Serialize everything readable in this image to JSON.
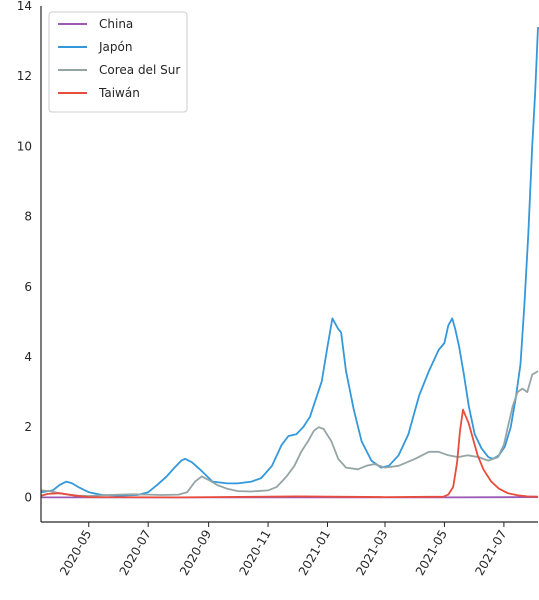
{
  "chart_data": {
    "type": "line",
    "x_type": "date",
    "xlim": [
      "2020-03-13",
      "2021-08-05"
    ],
    "ylim": [
      -0.7,
      14
    ],
    "xticks": [
      "2020-05",
      "2020-07",
      "2020-09",
      "2020-11",
      "2021-01",
      "2021-03",
      "2021-05",
      "2021-07"
    ],
    "yticks": [
      0,
      2,
      4,
      6,
      8,
      10,
      12,
      14
    ],
    "grid": false,
    "legend": "top-left",
    "series": [
      {
        "name": "China",
        "color": "#9b59b6",
        "x": [
          "2020-03-13",
          "2020-07-01",
          "2021-01-01",
          "2021-05-01",
          "2021-08-05"
        ],
        "y": [
          0.0,
          0.0,
          0.0,
          0.0,
          0.01
        ]
      },
      {
        "name": "Japón",
        "color": "#3498db",
        "x": [
          "2020-03-13",
          "2020-03-25",
          "2020-04-01",
          "2020-04-08",
          "2020-04-14",
          "2020-04-20",
          "2020-05-01",
          "2020-05-15",
          "2020-06-01",
          "2020-06-20",
          "2020-07-01",
          "2020-07-10",
          "2020-07-20",
          "2020-07-28",
          "2020-08-04",
          "2020-08-08",
          "2020-08-15",
          "2020-08-25",
          "2020-09-05",
          "2020-09-20",
          "2020-10-01",
          "2020-10-15",
          "2020-10-25",
          "2020-11-05",
          "2020-11-15",
          "2020-11-22",
          "2020-11-30",
          "2020-12-07",
          "2020-12-14",
          "2020-12-20",
          "2020-12-26",
          "2021-01-01",
          "2021-01-06",
          "2021-01-09",
          "2021-01-12",
          "2021-01-15",
          "2021-01-20",
          "2021-01-28",
          "2021-02-05",
          "2021-02-15",
          "2021-02-25",
          "2021-03-05",
          "2021-03-15",
          "2021-03-25",
          "2021-04-05",
          "2021-04-15",
          "2021-04-25",
          "2021-05-01",
          "2021-05-05",
          "2021-05-09",
          "2021-05-12",
          "2021-05-16",
          "2021-05-21",
          "2021-05-26",
          "2021-06-01",
          "2021-06-08",
          "2021-06-15",
          "2021-06-20",
          "2021-06-26",
          "2021-07-02",
          "2021-07-08",
          "2021-07-13",
          "2021-07-18",
          "2021-07-22",
          "2021-07-26",
          "2021-07-30",
          "2021-08-02",
          "2021-08-05"
        ],
        "y": [
          0.15,
          0.2,
          0.35,
          0.45,
          0.4,
          0.3,
          0.15,
          0.07,
          0.05,
          0.07,
          0.15,
          0.35,
          0.6,
          0.85,
          1.05,
          1.1,
          1.0,
          0.75,
          0.45,
          0.4,
          0.4,
          0.45,
          0.55,
          0.9,
          1.5,
          1.75,
          1.8,
          2.0,
          2.3,
          2.8,
          3.3,
          4.3,
          5.1,
          4.95,
          4.8,
          4.7,
          3.6,
          2.5,
          1.6,
          1.05,
          0.85,
          0.9,
          1.2,
          1.8,
          2.9,
          3.6,
          4.2,
          4.4,
          4.9,
          5.1,
          4.8,
          4.3,
          3.5,
          2.6,
          1.8,
          1.4,
          1.15,
          1.1,
          1.2,
          1.45,
          2.0,
          2.8,
          3.8,
          5.5,
          7.5,
          10.0,
          11.5,
          13.4
        ]
      },
      {
        "name": "Corea del Sur",
        "color": "#95a5a6",
        "x": [
          "2020-03-13",
          "2020-03-22",
          "2020-04-01",
          "2020-04-10",
          "2020-04-20",
          "2020-05-01",
          "2020-05-15",
          "2020-06-01",
          "2020-06-15",
          "2020-07-01",
          "2020-07-15",
          "2020-08-01",
          "2020-08-10",
          "2020-08-18",
          "2020-08-25",
          "2020-09-01",
          "2020-09-10",
          "2020-09-20",
          "2020-10-01",
          "2020-10-15",
          "2020-11-01",
          "2020-11-10",
          "2020-11-20",
          "2020-11-28",
          "2020-12-05",
          "2020-12-12",
          "2020-12-18",
          "2020-12-23",
          "2020-12-28",
          "2021-01-05",
          "2021-01-12",
          "2021-01-20",
          "2021-02-01",
          "2021-02-10",
          "2021-02-18",
          "2021-03-01",
          "2021-03-15",
          "2021-04-01",
          "2021-04-15",
          "2021-04-25",
          "2021-05-05",
          "2021-05-15",
          "2021-05-25",
          "2021-06-05",
          "2021-06-15",
          "2021-06-25",
          "2021-07-01",
          "2021-07-05",
          "2021-07-10",
          "2021-07-15",
          "2021-07-20",
          "2021-07-25",
          "2021-07-30",
          "2021-08-05"
        ],
        "y": [
          0.2,
          0.18,
          0.12,
          0.08,
          0.05,
          0.04,
          0.06,
          0.08,
          0.09,
          0.08,
          0.07,
          0.08,
          0.15,
          0.45,
          0.6,
          0.5,
          0.35,
          0.25,
          0.18,
          0.17,
          0.2,
          0.3,
          0.6,
          0.9,
          1.3,
          1.6,
          1.9,
          2.0,
          1.95,
          1.6,
          1.1,
          0.85,
          0.8,
          0.9,
          0.95,
          0.85,
          0.9,
          1.1,
          1.3,
          1.3,
          1.2,
          1.15,
          1.2,
          1.15,
          1.05,
          1.15,
          1.5,
          2.0,
          2.6,
          3.0,
          3.1,
          3.0,
          3.5,
          3.6
        ]
      },
      {
        "name": "Taiwán",
        "color": "#e74c3c",
        "x": [
          "2020-03-13",
          "2020-03-20",
          "2020-04-01",
          "2020-04-15",
          "2020-05-01",
          "2020-08-01",
          "2020-12-01",
          "2021-03-01",
          "2021-04-30",
          "2021-05-05",
          "2021-05-10",
          "2021-05-14",
          "2021-05-17",
          "2021-05-20",
          "2021-05-23",
          "2021-05-26",
          "2021-05-30",
          "2021-06-04",
          "2021-06-10",
          "2021-06-18",
          "2021-06-26",
          "2021-07-05",
          "2021-07-15",
          "2021-07-25",
          "2021-08-05"
        ],
        "y": [
          0.05,
          0.1,
          0.12,
          0.06,
          0.01,
          0.0,
          0.03,
          0.01,
          0.02,
          0.08,
          0.3,
          1.0,
          1.9,
          2.5,
          2.3,
          2.1,
          1.7,
          1.2,
          0.8,
          0.45,
          0.25,
          0.12,
          0.06,
          0.03,
          0.02
        ]
      }
    ]
  }
}
